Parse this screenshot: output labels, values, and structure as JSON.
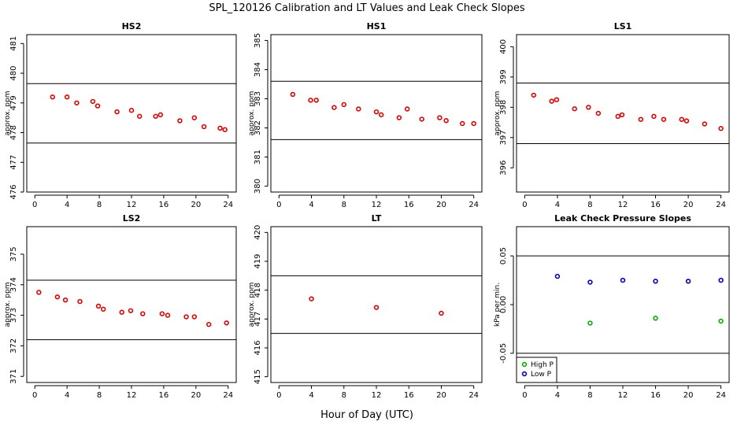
{
  "figure": {
    "title": "SPL_120126  Calibration and LT Values and Leak Check Slopes",
    "xlabel": "Hour of Day (UTC)"
  },
  "chart_data": [
    {
      "type": "scatter",
      "title": "HS2",
      "ylabel": "approx. ppm",
      "xlim": [
        -1,
        25
      ],
      "ylim": [
        476,
        481.3
      ],
      "xticks": [
        0,
        4,
        8,
        12,
        16,
        20,
        24
      ],
      "yticks": [
        476,
        477,
        478,
        479,
        480,
        481
      ],
      "hlines": [
        479.65,
        477.65
      ],
      "series": [
        {
          "color": "#e00000",
          "x": [
            2.2,
            4.0,
            5.2,
            7.2,
            7.8,
            10.2,
            12.0,
            13.0,
            15.0,
            15.6,
            18.0,
            19.8,
            21.0,
            23.0,
            23.6
          ],
          "y": [
            479.2,
            479.2,
            479.0,
            479.05,
            478.9,
            478.7,
            478.75,
            478.55,
            478.55,
            478.6,
            478.4,
            478.5,
            478.2,
            478.15,
            478.1
          ]
        }
      ]
    },
    {
      "type": "scatter",
      "title": "HS1",
      "ylabel": "approx. ppm",
      "xlim": [
        -1,
        25
      ],
      "ylim": [
        379.8,
        385.2
      ],
      "xticks": [
        0,
        4,
        8,
        12,
        16,
        20,
        24
      ],
      "yticks": [
        380,
        381,
        382,
        383,
        384,
        385
      ],
      "hlines": [
        383.6,
        381.6
      ],
      "series": [
        {
          "color": "#e00000",
          "x": [
            1.7,
            3.9,
            4.6,
            6.8,
            8.0,
            9.8,
            12.0,
            12.6,
            14.8,
            15.8,
            17.6,
            19.8,
            20.6,
            22.6,
            24.0
          ],
          "y": [
            383.15,
            382.95,
            382.95,
            382.7,
            382.8,
            382.65,
            382.55,
            382.45,
            382.35,
            382.65,
            382.3,
            382.35,
            382.25,
            382.15,
            382.15
          ]
        }
      ]
    },
    {
      "type": "scatter",
      "title": "LS1",
      "ylabel": "approx. ppm",
      "xlim": [
        -1,
        25
      ],
      "ylim": [
        395.2,
        400.4
      ],
      "xticks": [
        0,
        4,
        8,
        12,
        16,
        20,
        24
      ],
      "yticks": [
        396,
        397,
        398,
        399,
        400
      ],
      "hlines": [
        398.8,
        396.8
      ],
      "series": [
        {
          "color": "#e00000",
          "x": [
            1.1,
            3.3,
            3.9,
            6.1,
            7.8,
            9.0,
            11.4,
            11.9,
            14.2,
            15.8,
            17.0,
            19.2,
            19.8,
            22.0,
            24.0
          ],
          "y": [
            398.4,
            398.2,
            398.25,
            397.95,
            398.0,
            397.8,
            397.7,
            397.75,
            397.6,
            397.7,
            397.6,
            397.6,
            397.55,
            397.45,
            397.3
          ]
        }
      ]
    },
    {
      "type": "scatter",
      "title": "LS2",
      "ylabel": "approx. ppm",
      "xlim": [
        -1,
        25
      ],
      "ylim": [
        370.8,
        375.9
      ],
      "xticks": [
        0,
        4,
        8,
        12,
        16,
        20,
        24
      ],
      "yticks": [
        371,
        372,
        373,
        374,
        375
      ],
      "hlines": [
        374.15,
        372.2
      ],
      "series": [
        {
          "color": "#e00000",
          "x": [
            0.5,
            2.8,
            3.8,
            5.6,
            7.9,
            8.5,
            10.8,
            11.9,
            13.4,
            15.8,
            16.5,
            18.8,
            19.8,
            21.6,
            23.8
          ],
          "y": [
            373.75,
            373.6,
            373.5,
            373.45,
            373.3,
            373.2,
            373.1,
            373.15,
            373.05,
            373.05,
            373.0,
            372.95,
            372.95,
            372.7,
            372.75
          ]
        }
      ]
    },
    {
      "type": "scatter",
      "title": "LT",
      "ylabel": "approx. ppm",
      "xlim": [
        -1,
        25
      ],
      "ylim": [
        414.8,
        420.2
      ],
      "xticks": [
        0,
        4,
        8,
        12,
        16,
        20,
        24
      ],
      "yticks": [
        415,
        416,
        417,
        418,
        419,
        420
      ],
      "hlines": [
        418.5,
        416.5
      ],
      "series": [
        {
          "color": "#e00000",
          "x": [
            4.0,
            12.0,
            20.0
          ],
          "y": [
            417.7,
            417.4,
            417.2
          ]
        }
      ]
    },
    {
      "type": "scatter",
      "title": "Leak Check Pressure Slopes",
      "ylabel": "kPa per min.",
      "xlim": [
        -1,
        25
      ],
      "ylim": [
        -0.08,
        0.08
      ],
      "xticks": [
        0,
        4,
        8,
        12,
        16,
        20,
        24
      ],
      "yticks": [
        -0.05,
        0.0,
        0.05
      ],
      "ytick_labels": [
        "-0.05",
        "0.00",
        "0.05"
      ],
      "hlines": [
        0.05,
        -0.05
      ],
      "legend": {
        "placement": "bottom-left"
      },
      "series": [
        {
          "name": "High P",
          "color": "#00b000",
          "x": [
            8,
            16,
            24
          ],
          "y": [
            -0.019,
            -0.014,
            -0.017
          ]
        },
        {
          "name": "Low P",
          "color": "#0000cc",
          "x": [
            4,
            8,
            12,
            16,
            20,
            24
          ],
          "y": [
            0.029,
            0.023,
            0.025,
            0.024,
            0.024,
            0.025
          ]
        }
      ]
    }
  ]
}
